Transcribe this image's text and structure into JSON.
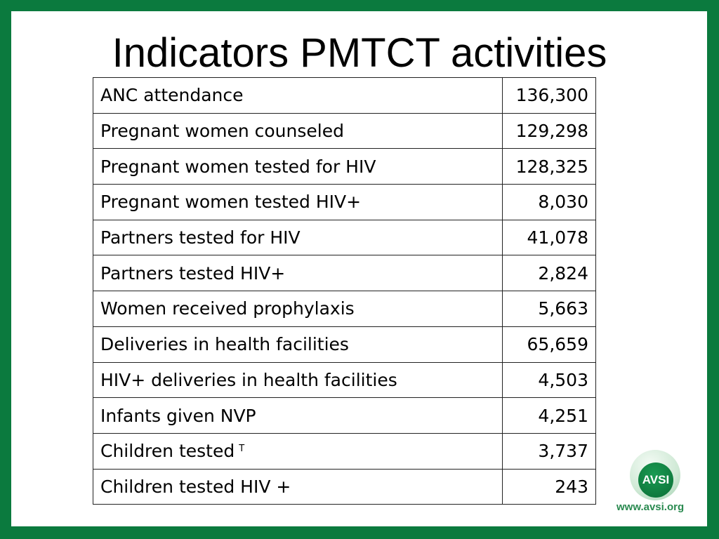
{
  "title": "Indicators PMTCT activities",
  "rows": [
    {
      "label": "ANC attendance",
      "value": "136,300"
    },
    {
      "label": "Pregnant women counseled",
      "value": "129,298"
    },
    {
      "label": "Pregnant women tested for HIV",
      "value": "128,325"
    },
    {
      "label": "Pregnant women tested HIV+",
      "value": "8,030"
    },
    {
      "label": "Partners tested for HIV",
      "value": "41,078"
    },
    {
      "label": "Partners tested HIV+",
      "value": "2,824"
    },
    {
      "label": "Women received prophylaxis",
      "value": "5,663"
    },
    {
      "label": "Deliveries in health facilities",
      "value": "65,659"
    },
    {
      "label": "HIV+ deliveries in health facilities",
      "value": "4,503"
    },
    {
      "label": "Infants given NVP",
      "value": "4,251"
    },
    {
      "label": "Children tested",
      "sup": "T",
      "value": "3,737"
    },
    {
      "label": "Children tested HIV +",
      "value": "243"
    }
  ],
  "logo": {
    "text": "AVSI",
    "url": "www.avsi.org"
  },
  "colors": {
    "frame": "#0b7a3e"
  }
}
